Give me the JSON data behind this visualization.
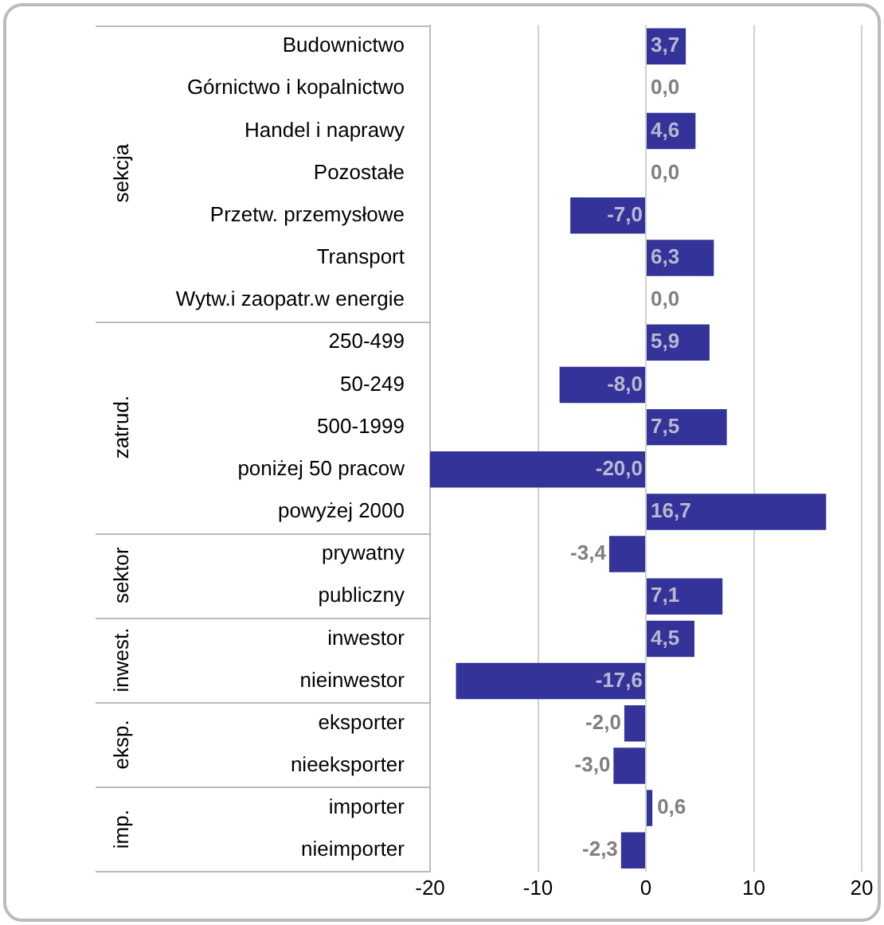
{
  "chart_data": {
    "type": "bar",
    "orientation": "horizontal",
    "categories": [
      "Budownictwo",
      "Górnictwo i kopalnictwo",
      "Handel i naprawy",
      "Pozostałe",
      "Przetw. przemysłowe",
      "Transport",
      "Wytw.i zaopatr.w energie",
      "250-499",
      "50-249",
      "500-1999",
      "poniżej 50 pracow",
      "powyżej 2000",
      "prywatny",
      "publiczny",
      "inwestor",
      "nieinwestor",
      "eksporter",
      "nieeksporter",
      "importer",
      "nieimporter"
    ],
    "values": [
      3.7,
      0,
      4.6,
      0,
      -7,
      6.3,
      0,
      5.9,
      -8,
      7.5,
      -20,
      16.7,
      -3.4,
      7.1,
      4.5,
      -17.6,
      -2,
      -3,
      0.6,
      -2.3
    ],
    "value_labels": [
      "3,7",
      "0,0",
      "4,6",
      "0,0",
      "-7,0",
      "6,3",
      "0,0",
      "5,9",
      "-8,0",
      "7,5",
      "-20,0",
      "16,7",
      "-3,4",
      "7,1",
      "4,5",
      "-17,6",
      "-2,0",
      "-3,0",
      "0,6",
      "-2,3"
    ],
    "color": "#333399",
    "xlim": [
      -20,
      20
    ],
    "xticks": [
      -20,
      -10,
      0,
      10,
      20
    ],
    "grid": "x",
    "legend": false,
    "annotations": [
      "sekcja",
      "zatrud.",
      "sektor",
      "inwest.",
      "eksp.",
      "imp."
    ]
  }
}
